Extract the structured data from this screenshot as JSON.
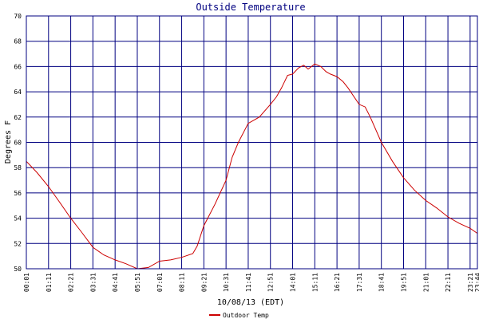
{
  "chart_data": {
    "type": "line",
    "title": "Outside Temperature",
    "xlabel": "10/08/13 (EDT)",
    "ylabel": "Degrees F",
    "ylim": [
      50,
      70
    ],
    "yticks": [
      50,
      52,
      54,
      56,
      58,
      60,
      62,
      64,
      66,
      68,
      70
    ],
    "xlim": [
      "00:01",
      "23:44"
    ],
    "xtick_labels": [
      "00:01",
      "01:11",
      "02:21",
      "03:31",
      "04:41",
      "05:51",
      "07:01",
      "08:11",
      "09:21",
      "10:31",
      "11:41",
      "12:51",
      "14:01",
      "15:11",
      "16:21",
      "17:31",
      "18:41",
      "19:51",
      "21:01",
      "22:11",
      "23:21",
      "23:44"
    ],
    "grid": true,
    "legend_position": "bottom-left",
    "colors": {
      "line": "#cc0000",
      "grid": "#000080",
      "title": "#000080"
    },
    "series": [
      {
        "name": "Outdoor Temp",
        "x": [
          "00:01",
          "00:35",
          "01:11",
          "01:45",
          "02:21",
          "02:55",
          "03:31",
          "04:05",
          "04:41",
          "05:15",
          "05:51",
          "06:26",
          "07:01",
          "07:36",
          "08:11",
          "08:46",
          "09:00",
          "09:21",
          "09:56",
          "10:31",
          "10:50",
          "11:10",
          "11:41",
          "12:16",
          "12:51",
          "13:10",
          "13:26",
          "13:45",
          "14:01",
          "14:20",
          "14:36",
          "14:50",
          "15:11",
          "15:30",
          "15:46",
          "16:00",
          "16:21",
          "16:40",
          "16:56",
          "17:31",
          "17:50",
          "18:06",
          "18:41",
          "19:16",
          "19:51",
          "20:26",
          "21:01",
          "21:36",
          "22:11",
          "22:46",
          "23:21",
          "23:44"
        ],
        "values": [
          58.5,
          57.6,
          56.5,
          55.3,
          54.0,
          52.9,
          51.7,
          51.1,
          50.7,
          50.4,
          50.0,
          50.1,
          50.6,
          50.7,
          50.9,
          51.2,
          51.8,
          53.4,
          55.1,
          57.0,
          58.8,
          60.0,
          61.5,
          62.0,
          63.0,
          63.6,
          64.3,
          65.3,
          65.4,
          65.9,
          66.1,
          65.8,
          66.2,
          66.0,
          65.6,
          65.4,
          65.2,
          64.8,
          64.3,
          63.0,
          62.8,
          62.0,
          60.0,
          58.5,
          57.2,
          56.2,
          55.4,
          54.8,
          54.1,
          53.6,
          53.2,
          52.8
        ]
      }
    ]
  }
}
